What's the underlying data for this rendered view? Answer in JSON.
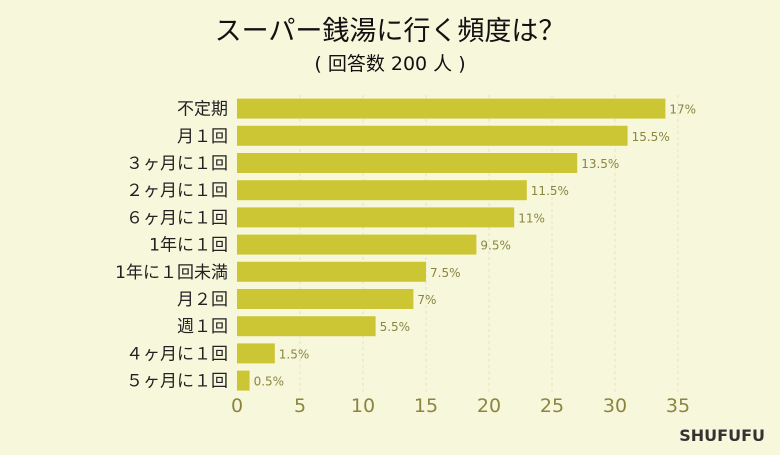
{
  "chart_data": {
    "type": "bar",
    "orientation": "horizontal",
    "title": "スーパー銭湯に行く頻度は？",
    "subtitle": "( 回答数 200 人 )",
    "categories": [
      "不定期",
      "月１回",
      "３ヶ月に１回",
      "２ヶ月に１回",
      "６ヶ月に１回",
      "1年に１回",
      "1年に１回未満",
      "月２回",
      "週１回",
      "４ヶ月に１回",
      "５ヶ月に１回"
    ],
    "values": [
      34,
      31,
      27,
      23,
      22,
      19,
      15,
      14,
      11,
      3,
      1
    ],
    "value_labels": [
      "17%",
      "15.5%",
      "13.5%",
      "11.5%",
      "11%",
      "9.5%",
      "7.5%",
      "7%",
      "5.5%",
      "1.5%",
      "0.5%"
    ],
    "x_ticks": [
      0,
      5,
      10,
      15,
      20,
      25,
      30,
      35
    ],
    "xlim": [
      0,
      35
    ],
    "grid": true,
    "bar_color": "#cdc634",
    "grid_color": "#e4e4c0",
    "tick_color": "#8a8640"
  },
  "brand": "SHUFUFU"
}
